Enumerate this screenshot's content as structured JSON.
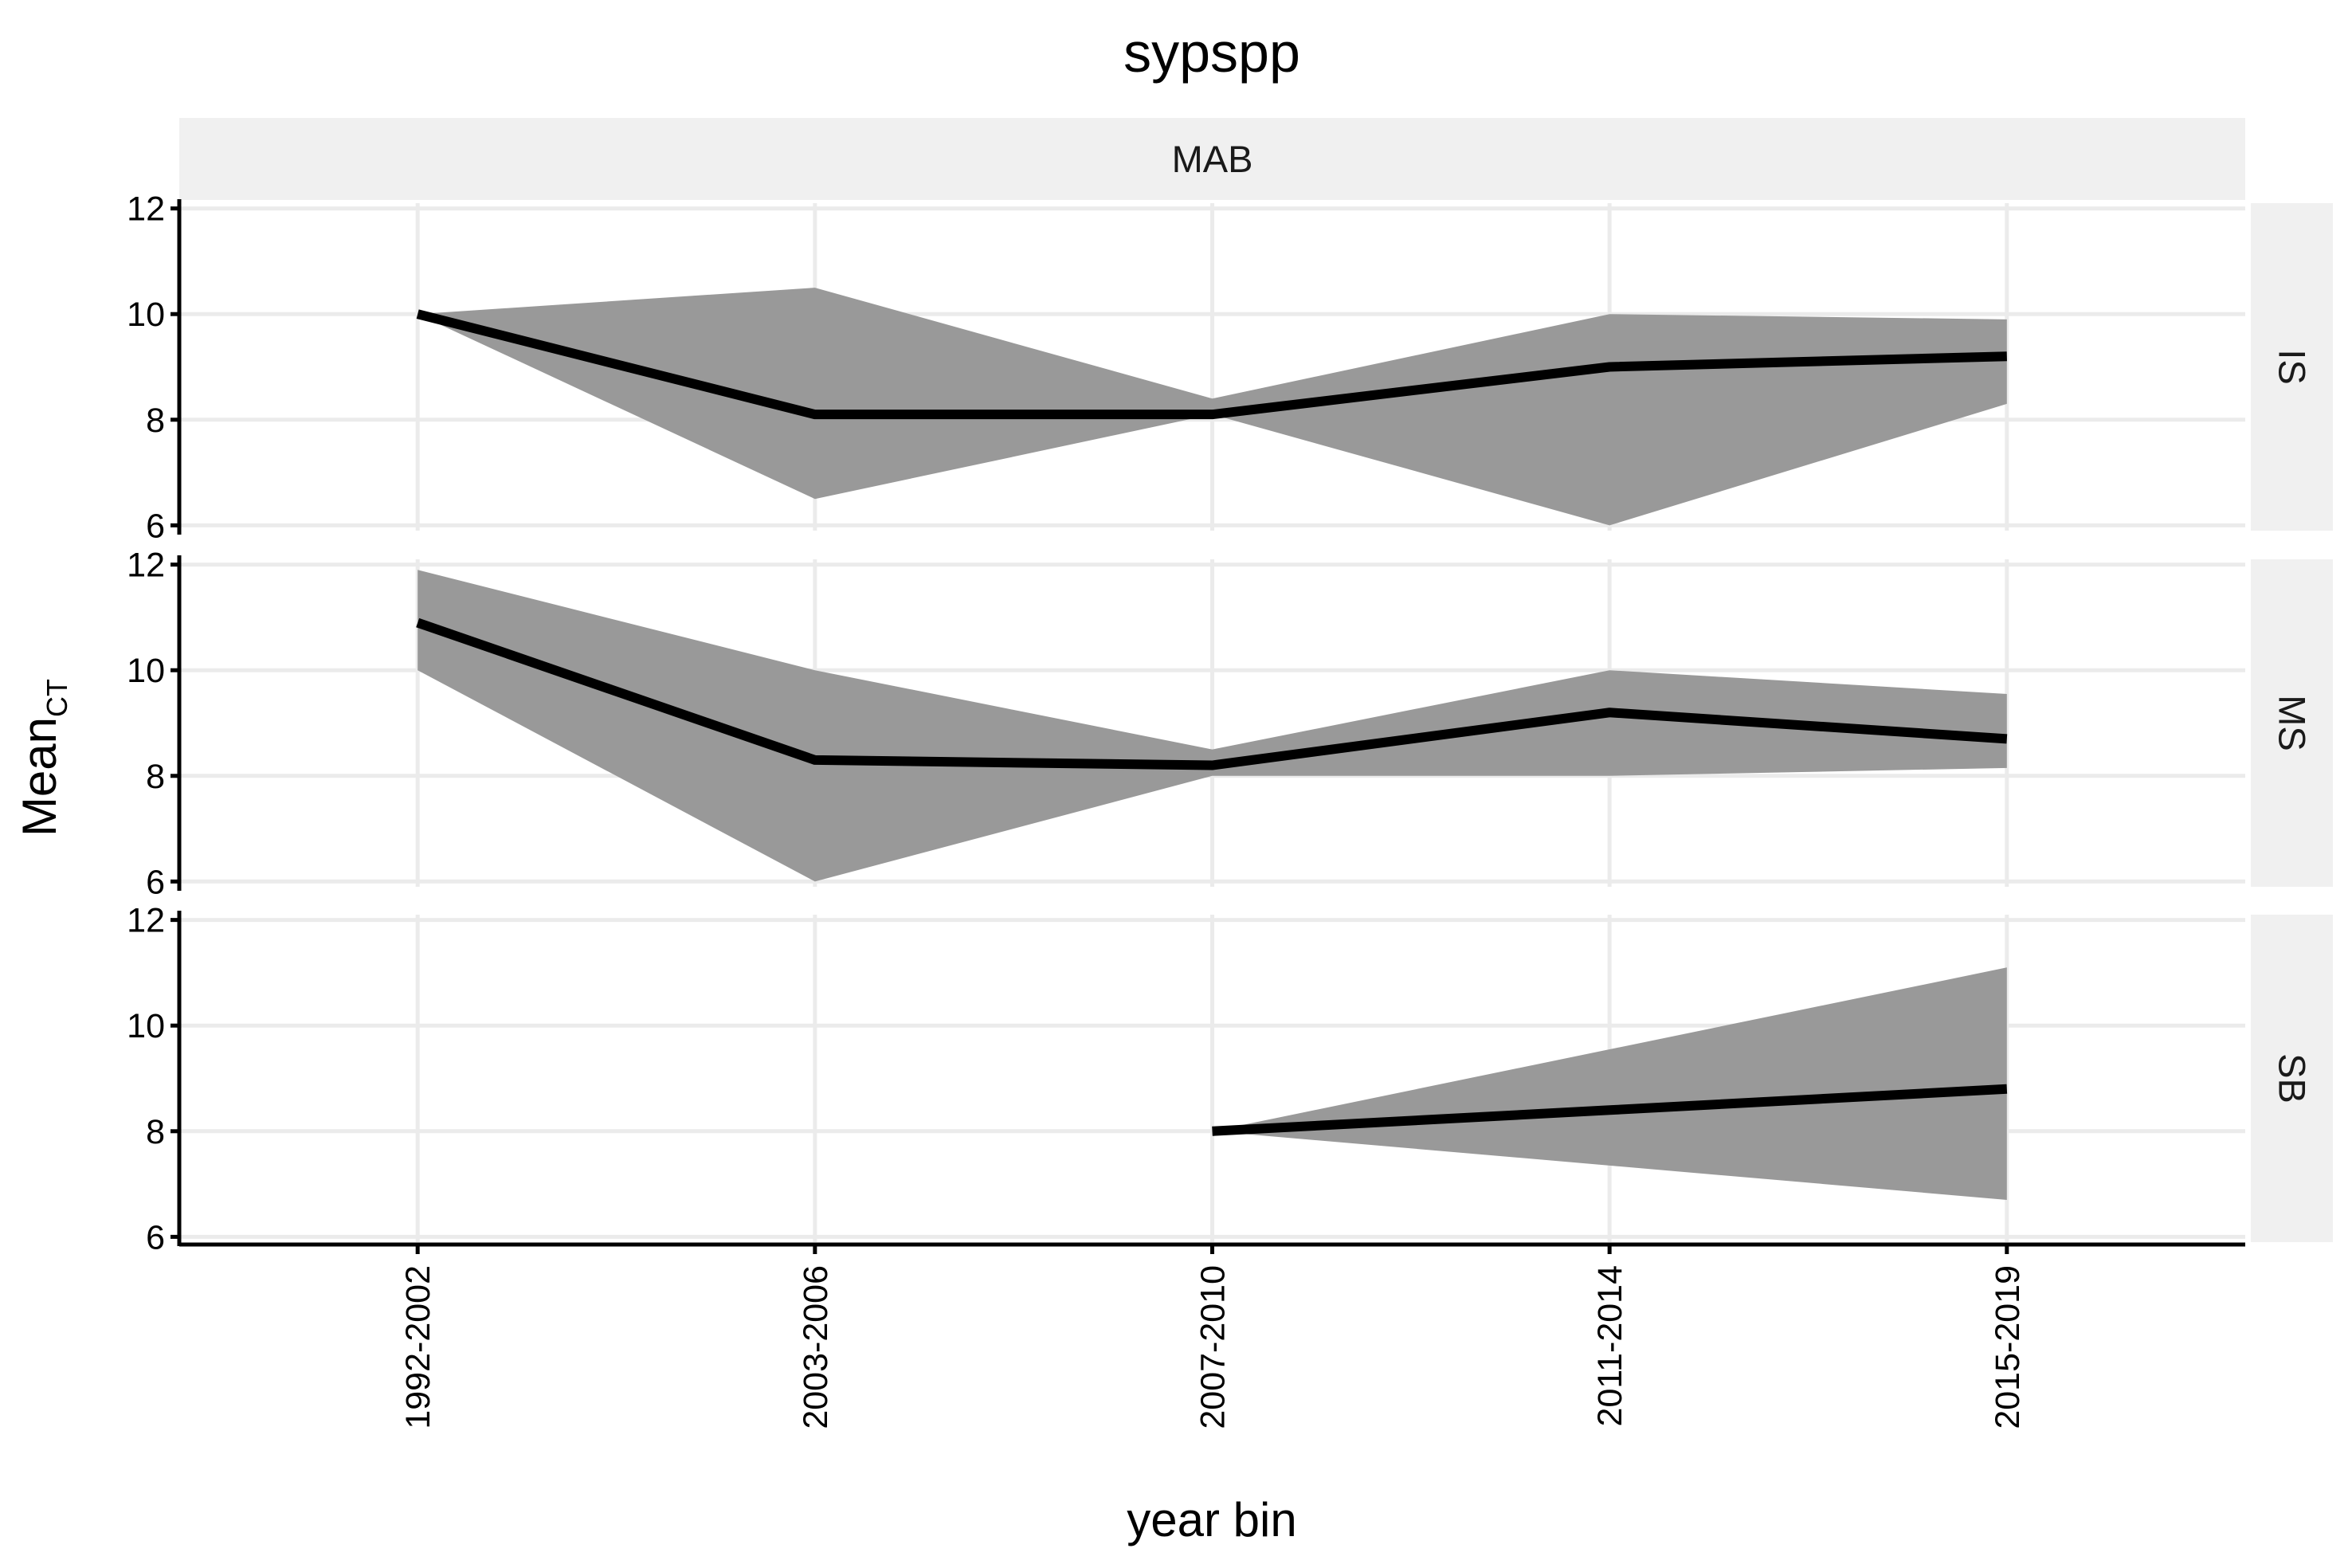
{
  "chart_data": {
    "type": "area",
    "title": "sypspp",
    "xlabel": "year bin",
    "ylabel": "Mean",
    "ylabel_subscript": "CT",
    "facet_column": "MAB",
    "categories": [
      "1992-2002",
      "2003-2006",
      "2007-2010",
      "2011-2014",
      "2015-2019"
    ],
    "ylim": [
      5.9,
      12.1
    ],
    "yticks": [
      "6",
      "8",
      "10",
      "12"
    ],
    "grid": true,
    "panels": [
      {
        "label": "IS",
        "mean": [
          10.0,
          8.1,
          8.1,
          9.0,
          9.2
        ],
        "lower": [
          10.0,
          6.5,
          8.1,
          6.0,
          8.3
        ],
        "upper": [
          10.0,
          10.5,
          8.4,
          10.0,
          9.9
        ]
      },
      {
        "label": "MS",
        "mean": [
          10.9,
          8.3,
          8.2,
          9.2,
          8.7
        ],
        "lower": [
          10.0,
          6.0,
          8.0,
          8.0,
          8.15
        ],
        "upper": [
          11.9,
          10.0,
          8.5,
          10.0,
          9.55
        ]
      },
      {
        "label": "SB",
        "mean": [
          null,
          null,
          8.0,
          8.4,
          8.8
        ],
        "lower": [
          null,
          null,
          8.0,
          7.35,
          6.7
        ],
        "upper": [
          null,
          null,
          8.0,
          9.55,
          11.1
        ]
      }
    ],
    "colors": {
      "ribbon": "#999999",
      "line": "#000000",
      "strip": "#f0f0f0",
      "grid": "#ebebeb"
    }
  }
}
